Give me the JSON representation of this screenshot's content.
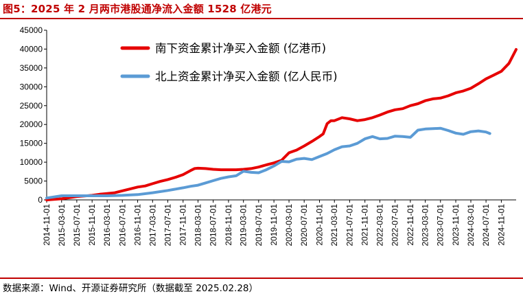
{
  "title": "图5：2025 年 2 月两市港股通净流入金额 1528 亿港元",
  "source": "数据来源：Wind、开源证券研究所（数据截至 2025.02.28）",
  "chart_data": {
    "type": "line",
    "title": "图5：2025 年 2 月两市港股通净流入金额 1528 亿港元",
    "xlabel": "",
    "ylabel": "",
    "ylim": [
      0,
      45000
    ],
    "yticks": [
      0,
      5000,
      10000,
      15000,
      20000,
      25000,
      30000,
      35000,
      40000,
      45000
    ],
    "xlim": [
      "2014-11-01",
      "2025-02-28"
    ],
    "xticks": [
      "2014-11-01",
      "2015-03-01",
      "2015-07-01",
      "2015-11-01",
      "2016-03-01",
      "2016-07-01",
      "2016-11-01",
      "2017-03-01",
      "2017-07-01",
      "2017-11-01",
      "2018-03-01",
      "2018-07-01",
      "2018-11-01",
      "2019-03-01",
      "2019-07-01",
      "2019-11-01",
      "2020-03-01",
      "2020-07-01",
      "2020-11-01",
      "2021-03-01",
      "2021-07-01",
      "2021-11-01",
      "2022-03-01",
      "2022-07-01",
      "2022-11-01",
      "2023-03-01",
      "2023-07-01",
      "2023-11-01",
      "2024-03-01",
      "2024-07-01",
      "2024-11-01"
    ],
    "grid": false,
    "legend": "top-right",
    "series": [
      {
        "name": "南下资金累计净买入金额 (亿港币)",
        "color": "#e60000",
        "points": [
          [
            "2014-11-01",
            0
          ],
          [
            "2015-03-01",
            300
          ],
          [
            "2015-07-01",
            900
          ],
          [
            "2015-11-01",
            1200
          ],
          [
            "2016-01-01",
            1500
          ],
          [
            "2016-03-01",
            1700
          ],
          [
            "2016-05-01",
            1900
          ],
          [
            "2016-07-01",
            2400
          ],
          [
            "2016-09-01",
            2900
          ],
          [
            "2016-11-01",
            3400
          ],
          [
            "2017-01-01",
            3700
          ],
          [
            "2017-03-01",
            4300
          ],
          [
            "2017-05-01",
            4900
          ],
          [
            "2017-07-01",
            5400
          ],
          [
            "2017-09-01",
            6000
          ],
          [
            "2017-11-01",
            6700
          ],
          [
            "2018-01-01",
            7800
          ],
          [
            "2018-02-01",
            8300
          ],
          [
            "2018-03-01",
            8400
          ],
          [
            "2018-05-01",
            8300
          ],
          [
            "2018-07-01",
            8100
          ],
          [
            "2018-09-01",
            8000
          ],
          [
            "2018-11-01",
            8000
          ],
          [
            "2019-01-01",
            8000
          ],
          [
            "2019-03-01",
            8100
          ],
          [
            "2019-05-01",
            8300
          ],
          [
            "2019-07-01",
            8700
          ],
          [
            "2019-09-01",
            9300
          ],
          [
            "2019-11-01",
            9800
          ],
          [
            "2020-01-01",
            10500
          ],
          [
            "2020-03-01",
            12500
          ],
          [
            "2020-05-01",
            13200
          ],
          [
            "2020-07-01",
            14300
          ],
          [
            "2020-09-01",
            15500
          ],
          [
            "2020-11-01",
            16800
          ],
          [
            "2020-12-01",
            17500
          ],
          [
            "2021-01-01",
            20200
          ],
          [
            "2021-02-01",
            21000
          ],
          [
            "2021-03-01",
            21000
          ],
          [
            "2021-05-01",
            21800
          ],
          [
            "2021-07-01",
            21500
          ],
          [
            "2021-09-01",
            21000
          ],
          [
            "2021-11-01",
            21300
          ],
          [
            "2022-01-01",
            21800
          ],
          [
            "2022-03-01",
            22500
          ],
          [
            "2022-05-01",
            23300
          ],
          [
            "2022-07-01",
            23900
          ],
          [
            "2022-09-01",
            24200
          ],
          [
            "2022-11-01",
            25000
          ],
          [
            "2023-01-01",
            25500
          ],
          [
            "2023-03-01",
            26300
          ],
          [
            "2023-05-01",
            26800
          ],
          [
            "2023-07-01",
            27000
          ],
          [
            "2023-09-01",
            27600
          ],
          [
            "2023-11-01",
            28400
          ],
          [
            "2024-01-01",
            28900
          ],
          [
            "2024-03-01",
            29600
          ],
          [
            "2024-05-01",
            30800
          ],
          [
            "2024-07-01",
            32100
          ],
          [
            "2024-09-01",
            33100
          ],
          [
            "2024-11-01",
            34100
          ],
          [
            "2025-01-01",
            36200
          ],
          [
            "2025-02-28",
            39900
          ]
        ]
      },
      {
        "name": "北上资金累计净买入金额 (亿人民币)",
        "color": "#5b9bd5",
        "points": [
          [
            "2014-11-01",
            500
          ],
          [
            "2015-03-01",
            1100
          ],
          [
            "2015-07-01",
            1100
          ],
          [
            "2015-11-01",
            1100
          ],
          [
            "2016-03-01",
            1100
          ],
          [
            "2016-07-01",
            1200
          ],
          [
            "2016-11-01",
            1400
          ],
          [
            "2017-03-01",
            1900
          ],
          [
            "2017-07-01",
            2500
          ],
          [
            "2017-11-01",
            3200
          ],
          [
            "2018-01-01",
            3600
          ],
          [
            "2018-03-01",
            3900
          ],
          [
            "2018-05-01",
            4500
          ],
          [
            "2018-07-01",
            5100
          ],
          [
            "2018-09-01",
            5700
          ],
          [
            "2018-11-01",
            6100
          ],
          [
            "2019-01-01",
            6400
          ],
          [
            "2019-03-01",
            7600
          ],
          [
            "2019-05-01",
            7300
          ],
          [
            "2019-07-01",
            7200
          ],
          [
            "2019-09-01",
            8000
          ],
          [
            "2019-11-01",
            9000
          ],
          [
            "2020-01-01",
            10200
          ],
          [
            "2020-03-01",
            10100
          ],
          [
            "2020-05-01",
            10800
          ],
          [
            "2020-07-01",
            11000
          ],
          [
            "2020-09-01",
            10700
          ],
          [
            "2020-11-01",
            11500
          ],
          [
            "2021-01-01",
            12300
          ],
          [
            "2021-03-01",
            13300
          ],
          [
            "2021-05-01",
            14100
          ],
          [
            "2021-07-01",
            14300
          ],
          [
            "2021-09-01",
            15000
          ],
          [
            "2021-11-01",
            16200
          ],
          [
            "2022-01-01",
            16800
          ],
          [
            "2022-03-01",
            16200
          ],
          [
            "2022-05-01",
            16300
          ],
          [
            "2022-07-01",
            16900
          ],
          [
            "2022-09-01",
            16800
          ],
          [
            "2022-11-01",
            16600
          ],
          [
            "2023-01-01",
            18500
          ],
          [
            "2023-03-01",
            18800
          ],
          [
            "2023-05-01",
            18900
          ],
          [
            "2023-07-01",
            19000
          ],
          [
            "2023-09-01",
            18400
          ],
          [
            "2023-11-01",
            17700
          ],
          [
            "2024-01-01",
            17400
          ],
          [
            "2024-03-01",
            18100
          ],
          [
            "2024-05-01",
            18300
          ],
          [
            "2024-07-01",
            18000
          ],
          [
            "2024-08-01",
            17600
          ]
        ]
      }
    ]
  }
}
